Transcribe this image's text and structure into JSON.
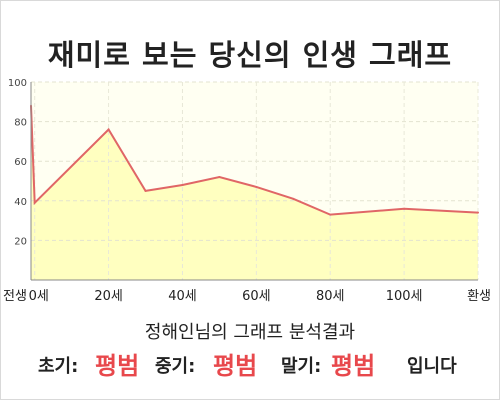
{
  "title": "재미로 보는 당신의 인생 그래프",
  "summary": "정해인님의 그래프 분석결과",
  "results": {
    "early_label": "초기:",
    "early_value": "평범",
    "mid_label": "중기:",
    "mid_value": "평범",
    "late_label": "말기:",
    "late_value": "평범",
    "suffix": "입니다"
  },
  "colors": {
    "line": "#e06666",
    "fill": "#ffffc0",
    "plot_bg": "#fffff2",
    "result_value": "#e8484c"
  },
  "chart_data": {
    "type": "area",
    "x": [
      -1,
      0,
      20,
      30,
      40,
      50,
      60,
      70,
      80,
      100,
      120
    ],
    "values": [
      88,
      39,
      76,
      45,
      48,
      52,
      47,
      41,
      33,
      36,
      34
    ],
    "xlim": [
      -1,
      120
    ],
    "ylim": [
      0,
      100
    ],
    "x_tick_labels": [
      {
        "x": -1,
        "label": "전생"
      },
      {
        "x": 0,
        "label": "0세"
      },
      {
        "x": 20,
        "label": "20세"
      },
      {
        "x": 40,
        "label": "40세"
      },
      {
        "x": 60,
        "label": "60세"
      },
      {
        "x": 80,
        "label": "80세"
      },
      {
        "x": 100,
        "label": "100세"
      },
      {
        "x": 120,
        "label": "환생"
      }
    ],
    "y_ticks": [
      20,
      40,
      60,
      80,
      100
    ],
    "grid": true,
    "legend": "none"
  }
}
